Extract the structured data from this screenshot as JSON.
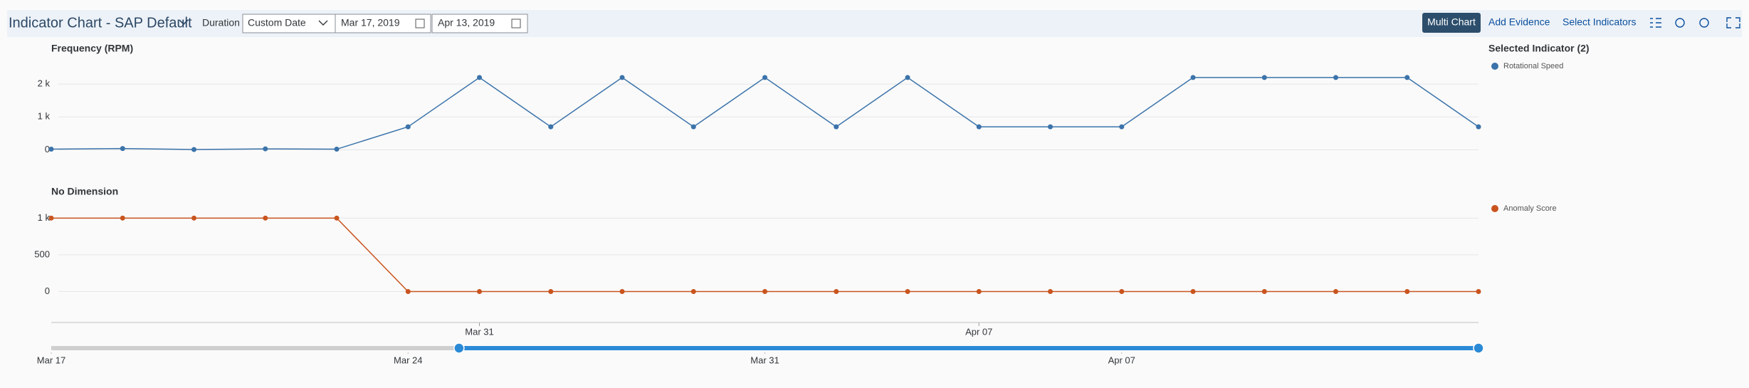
{
  "toolbar": {
    "title": "Indicator Chart - SAP Default",
    "duration_label": "Duration",
    "duration_value": "Custom Date",
    "start_date": "Mar 17, 2019",
    "end_date": "Apr 13, 2019",
    "buttons": [
      "Multi Chart",
      "Add Evidence",
      "Select Indicators"
    ]
  },
  "legend_title": "Selected Indicator (2)",
  "chart_data": [
    {
      "type": "line",
      "title": "Frequency (RPM)",
      "x": [
        "2019-03-25",
        "2019-03-26",
        "2019-03-27",
        "2019-03-28",
        "2019-03-29",
        "2019-03-30",
        "2019-03-31",
        "2019-04-01",
        "2019-04-02",
        "2019-04-03",
        "2019-04-04",
        "2019-04-05",
        "2019-04-06",
        "2019-04-07",
        "2019-04-08",
        "2019-04-09",
        "2019-04-10",
        "2019-04-11",
        "2019-04-12",
        "2019-04-13",
        "2019-04-14"
      ],
      "series": [
        {
          "name": "Rotational Speed",
          "color": "#3b73aa",
          "values": [
            20,
            40,
            10,
            30,
            20,
            700,
            2200,
            700,
            2200,
            700,
            2200,
            700,
            2200,
            700,
            700,
            700,
            2200,
            2200,
            2200,
            2200,
            700
          ]
        }
      ],
      "xlim": [
        "2019-03-25",
        "2019-04-14"
      ],
      "xticks": [
        {
          "value": "2019-03-31",
          "label": "Mar 31"
        },
        {
          "value": "2019-04-07",
          "label": "Apr 07"
        }
      ],
      "ylim": [
        -250,
        2500
      ],
      "yticks": [
        0,
        {
          "value": 1000,
          "label": "1 k"
        },
        {
          "value": 2000,
          "label": "2 k"
        }
      ],
      "grid": true
    },
    {
      "type": "line",
      "title": "No Dimension",
      "x": [
        "2019-03-25",
        "2019-03-26",
        "2019-03-27",
        "2019-03-28",
        "2019-03-29",
        "2019-03-30",
        "2019-03-31",
        "2019-04-01",
        "2019-04-02",
        "2019-04-03",
        "2019-04-04",
        "2019-04-05",
        "2019-04-06",
        "2019-04-07",
        "2019-04-08",
        "2019-04-09",
        "2019-04-10",
        "2019-04-11",
        "2019-04-12",
        "2019-04-13",
        "2019-04-14"
      ],
      "series": [
        {
          "name": "Anomaly Score",
          "color": "#c9541e",
          "values": [
            1000,
            1000,
            1000,
            1000,
            1000,
            0,
            0,
            0,
            0,
            0,
            0,
            0,
            0,
            0,
            0,
            0,
            0,
            0,
            0,
            0,
            0
          ]
        }
      ],
      "xlim": [
        "2019-03-25",
        "2019-04-14"
      ],
      "ylim": [
        -150,
        1100
      ],
      "yticks": [
        0,
        500,
        {
          "value": 1000,
          "label": "1 k"
        }
      ],
      "grid": true
    }
  ],
  "range_selector": {
    "xlim": [
      "2019-03-17",
      "2019-04-14"
    ],
    "xticks": [
      {
        "value": "2019-03-17",
        "label": "Mar 17"
      },
      {
        "value": "2019-03-24",
        "label": "Mar 24"
      },
      {
        "value": "2019-03-31",
        "label": "Mar 31"
      },
      {
        "value": "2019-04-07",
        "label": "Apr 07"
      }
    ],
    "selection": [
      "2019-03-25",
      "2019-04-14"
    ]
  }
}
